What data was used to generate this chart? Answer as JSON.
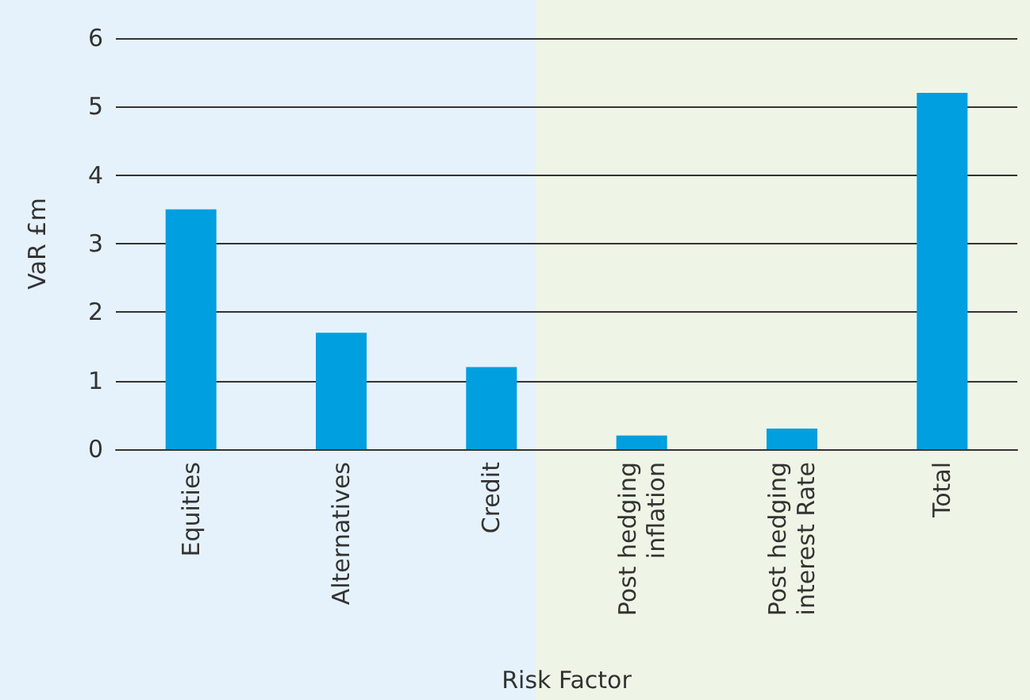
{
  "chart_data": {
    "type": "bar",
    "xlabel": "Risk Factor",
    "ylabel": "VaR £m",
    "categories": [
      "Equities",
      "Alternatives",
      "Credit",
      "Post hedging\ninflation",
      "Post hedging\ninterest Rate",
      "Total"
    ],
    "values": [
      3.5,
      1.7,
      1.2,
      0.2,
      0.3,
      5.2
    ],
    "color": "#009fe0",
    "ylim": [
      0,
      6
    ],
    "yticks": [
      0,
      1,
      2,
      3,
      4,
      5,
      6
    ],
    "grid": "y"
  }
}
